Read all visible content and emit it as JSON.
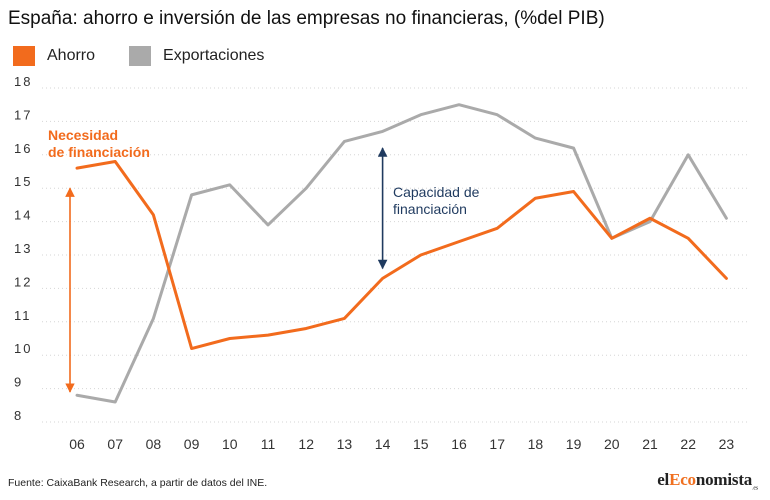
{
  "title": "España: ahorro e inversión de las empresas no financieras, (%del PIB)",
  "source": "Fuente: CaixaBank Research, a partir de datos del INE.",
  "brand": {
    "prefix": "el",
    "accent": "Eco",
    "suffix": "nomista",
    "tld": ".es"
  },
  "colors": {
    "ahorro": "#f26b1d",
    "exportaciones": "#aaaaaa",
    "arrow_dark": "#1f3a5f",
    "grid": "#d6d6d6"
  },
  "chart_data": {
    "type": "line",
    "categories": [
      "06",
      "07",
      "08",
      "09",
      "10",
      "11",
      "12",
      "13",
      "14",
      "15",
      "16",
      "17",
      "18",
      "19",
      "20",
      "21",
      "22",
      "23"
    ],
    "ylim": [
      8,
      18
    ],
    "yticks": [
      "8",
      "9",
      "10",
      "11",
      "12",
      "13",
      "14",
      "15",
      "16",
      "17",
      "18"
    ],
    "grid": true,
    "legend_position": "top-left",
    "series": [
      {
        "name": "Ahorro",
        "color": "#f26b1d",
        "values": [
          15.6,
          15.8,
          14.2,
          10.2,
          10.5,
          10.6,
          10.8,
          11.1,
          12.3,
          13.0,
          13.4,
          13.8,
          14.7,
          14.9,
          13.5,
          14.1,
          13.5,
          12.3
        ]
      },
      {
        "name": "Exportaciones",
        "color": "#aaaaaa",
        "values": [
          8.8,
          8.6,
          11.1,
          14.8,
          15.1,
          13.9,
          15.0,
          16.4,
          16.7,
          17.2,
          17.5,
          17.2,
          16.5,
          16.2,
          13.5,
          14.0,
          16.0,
          14.1
        ]
      }
    ],
    "annotations": [
      {
        "id": "necesidad",
        "lines": [
          "Necesidad",
          "de financiación"
        ],
        "color": "#f26b1d",
        "arrow_x": "06",
        "arrow_from": 15.0,
        "arrow_to": 8.9
      },
      {
        "id": "capacidad",
        "lines": [
          "Capacidad de",
          "financiación"
        ],
        "color": "#1f3a5f",
        "arrow_x": "14",
        "arrow_from": 16.2,
        "arrow_to": 12.6
      }
    ]
  }
}
